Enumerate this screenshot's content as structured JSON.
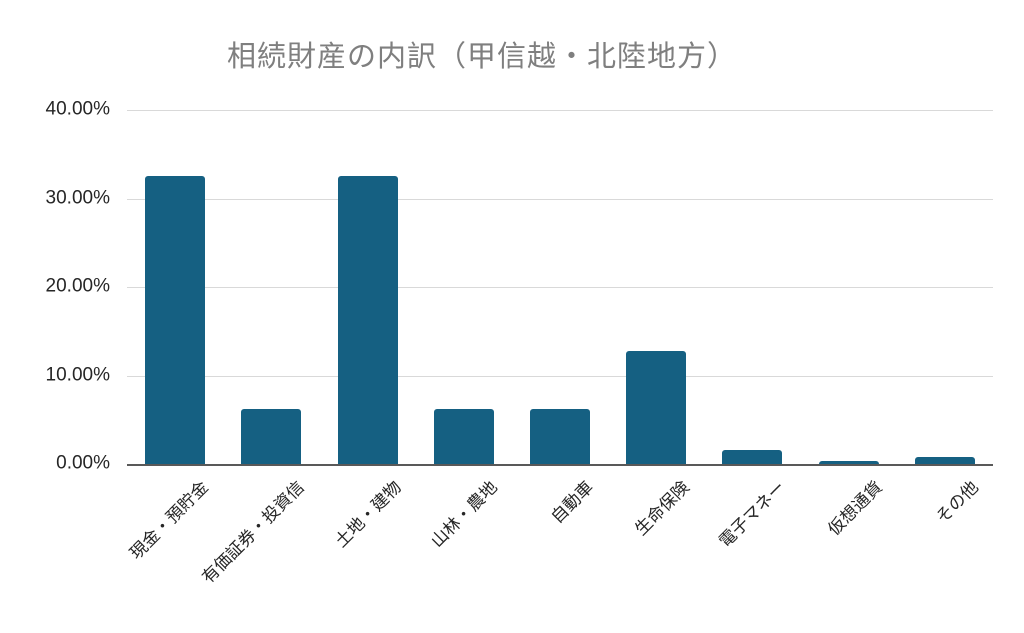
{
  "chart_data": {
    "type": "bar",
    "title": "相続財産の内訳（甲信越・北陸地方）",
    "categories": [
      "現金・預貯金",
      "有価証券・投資信",
      "土地・建物",
      "山林・農地",
      "自動車",
      "生命保険",
      "電子マネー",
      "仮想通貨",
      "その他"
    ],
    "values": [
      32.6,
      6.2,
      32.6,
      6.2,
      6.2,
      12.8,
      1.6,
      0.3,
      0.8
    ],
    "xlabel": "",
    "ylabel": "",
    "ylim": [
      0,
      40
    ],
    "y_ticks": [
      {
        "label": "40.00%",
        "value": 40
      },
      {
        "label": "30.00%",
        "value": 30
      },
      {
        "label": "20.00%",
        "value": 20
      },
      {
        "label": "10.00%",
        "value": 10
      },
      {
        "label": "0.00%",
        "value": 0
      }
    ],
    "grid": "horizontal",
    "legend_position": "none",
    "colors": {
      "bar": "#156082",
      "title": "#7f7f7f",
      "gridline": "#d9d9d9",
      "axis_line": "#595959",
      "tick_label": "#262626",
      "background": "#ffffff"
    }
  }
}
